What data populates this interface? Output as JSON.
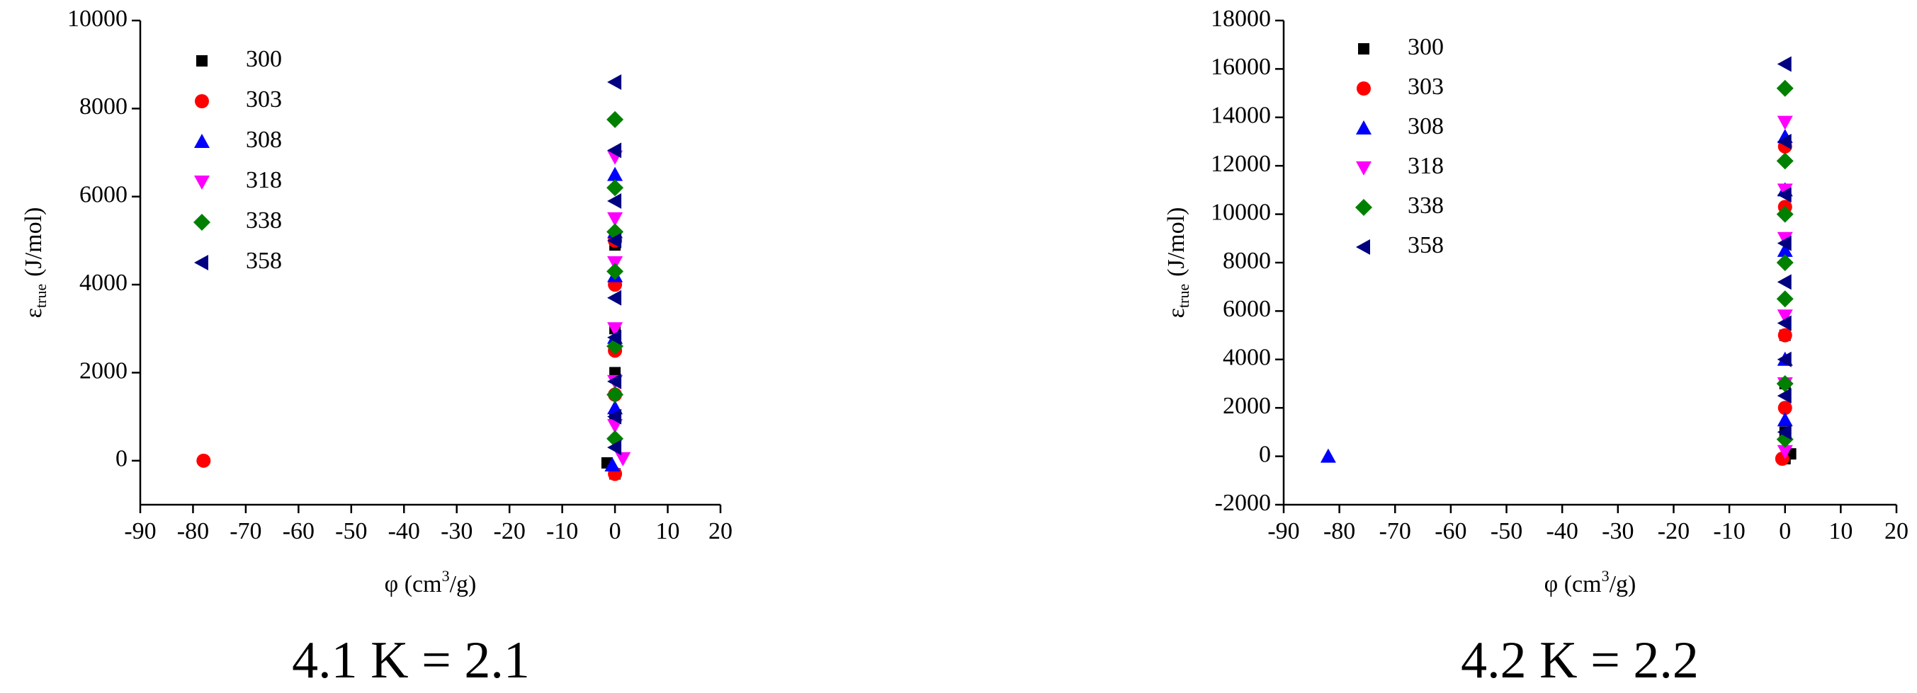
{
  "chart_data": [
    {
      "type": "scatter",
      "caption": "4.1 K = 2.1",
      "xlabel": {
        "main": "φ (cm",
        "sup": "3",
        "end": "/g)"
      },
      "ylabel": {
        "main": "ε",
        "sub": "true",
        "end": "(J/mol)"
      },
      "xlim": [
        -90,
        20
      ],
      "xticks": [
        -90,
        -80,
        -70,
        -60,
        -50,
        -40,
        -30,
        -20,
        -10,
        0,
        10,
        20
      ],
      "ylim": [
        -1000,
        10000
      ],
      "yticks": [
        0,
        2000,
        4000,
        6000,
        8000,
        10000
      ],
      "series": [
        {
          "name": "300",
          "color": "#000000",
          "marker": "square",
          "x": [
            -1.5,
            0,
            0,
            0,
            0,
            0
          ],
          "values": [
            -50,
            -300,
            1000,
            2000,
            3000,
            4900
          ]
        },
        {
          "name": "303",
          "color": "#ff0000",
          "marker": "circle",
          "x": [
            -78,
            0,
            0,
            0,
            0,
            0
          ],
          "values": [
            0,
            -300,
            1500,
            2500,
            4000,
            5000
          ]
        },
        {
          "name": "308",
          "color": "#0000ff",
          "marker": "triangle-up",
          "x": [
            -0.5,
            0,
            0,
            0,
            0,
            0
          ],
          "values": [
            -100,
            1200,
            2800,
            4200,
            5200,
            6500
          ]
        },
        {
          "name": "318",
          "color": "#ff00ff",
          "marker": "triangle-down",
          "x": [
            1.5,
            0,
            0,
            0,
            0,
            0,
            0
          ],
          "values": [
            50,
            800,
            1800,
            3000,
            4500,
            5500,
            6900
          ]
        },
        {
          "name": "338",
          "color": "#008000",
          "marker": "diamond",
          "x": [
            0,
            0,
            0,
            0,
            0,
            0,
            0
          ],
          "values": [
            500,
            1500,
            2600,
            4300,
            5200,
            6200,
            7750
          ]
        },
        {
          "name": "358",
          "color": "#000080",
          "marker": "triangle-left",
          "x": [
            0,
            0,
            0,
            0,
            0,
            0,
            0,
            0,
            0
          ],
          "values": [
            300,
            1000,
            1800,
            2800,
            3700,
            5000,
            5900,
            7050,
            8600
          ]
        }
      ]
    },
    {
      "type": "scatter",
      "caption": "4.2 K = 2.2",
      "xlabel": {
        "main": "φ (cm",
        "sup": "3",
        "end": "/g)"
      },
      "ylabel": {
        "main": "ε",
        "sub": "true",
        "end": "(J/mol)"
      },
      "xlim": [
        -90,
        20
      ],
      "xticks": [
        -90,
        -80,
        -70,
        -60,
        -50,
        -40,
        -30,
        -20,
        -10,
        0,
        10,
        20
      ],
      "ylim": [
        -2000,
        18000
      ],
      "yticks": [
        -2000,
        0,
        2000,
        4000,
        6000,
        8000,
        10000,
        12000,
        14000,
        16000,
        18000
      ],
      "series": [
        {
          "name": "300",
          "color": "#000000",
          "marker": "square",
          "x": [
            0,
            1,
            0,
            0,
            0
          ],
          "values": [
            -100,
            100,
            1000,
            3000,
            5000
          ]
        },
        {
          "name": "303",
          "color": "#ff0000",
          "marker": "circle",
          "x": [
            -0.5,
            0,
            0,
            0,
            0
          ],
          "values": [
            -100,
            2000,
            5000,
            10300,
            12800
          ]
        },
        {
          "name": "308",
          "color": "#0000ff",
          "marker": "triangle-up",
          "x": [
            -82,
            0,
            0,
            0,
            0,
            0
          ],
          "values": [
            0,
            1500,
            4000,
            8500,
            11000,
            13200
          ]
        },
        {
          "name": "318",
          "color": "#ff00ff",
          "marker": "triangle-down",
          "x": [
            0,
            0,
            0,
            0,
            0,
            0
          ],
          "values": [
            200,
            3000,
            5800,
            9000,
            11000,
            13800
          ]
        },
        {
          "name": "338",
          "color": "#008000",
          "marker": "diamond",
          "x": [
            0,
            0,
            0,
            0,
            0,
            0,
            0
          ],
          "values": [
            700,
            3000,
            6500,
            8000,
            10000,
            12200,
            15200
          ]
        },
        {
          "name": "358",
          "color": "#000080",
          "marker": "triangle-left",
          "x": [
            0,
            0,
            0,
            0,
            0,
            0,
            0,
            0,
            0
          ],
          "values": [
            1000,
            2500,
            4000,
            5500,
            7200,
            8800,
            10800,
            13000,
            16200
          ]
        }
      ]
    }
  ]
}
